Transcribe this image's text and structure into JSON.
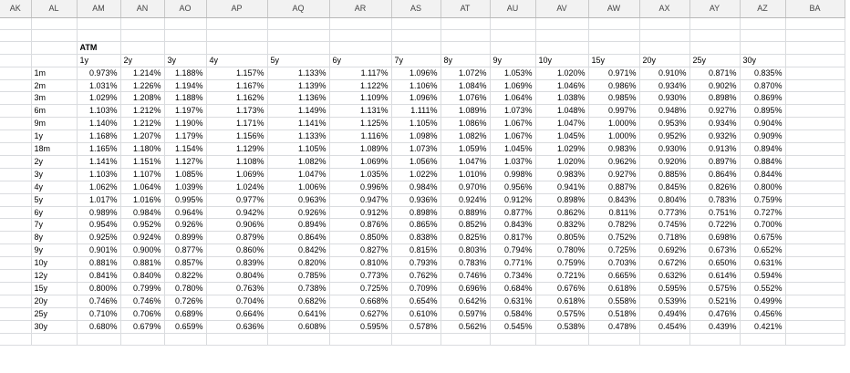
{
  "columns": [
    "AK",
    "AL",
    "AM",
    "AN",
    "AO",
    "AP",
    "AQ",
    "AR",
    "AS",
    "AT",
    "AU",
    "AV",
    "AW",
    "AX",
    "AY",
    "AZ",
    "BA"
  ],
  "table_title": "ATM",
  "maturity_headers": [
    "1y",
    "2y",
    "3y",
    "4y",
    "5y",
    "6y",
    "7y",
    "8y",
    "9y",
    "10y",
    "15y",
    "20y",
    "25y",
    "30y"
  ],
  "rows": [
    {
      "tenor": "1m",
      "values": [
        "0.973%",
        "1.214%",
        "1.188%",
        "1.157%",
        "1.133%",
        "1.117%",
        "1.096%",
        "1.072%",
        "1.053%",
        "1.020%",
        "0.971%",
        "0.910%",
        "0.871%",
        "0.835%"
      ]
    },
    {
      "tenor": "2m",
      "values": [
        "1.031%",
        "1.226%",
        "1.194%",
        "1.167%",
        "1.139%",
        "1.122%",
        "1.106%",
        "1.084%",
        "1.069%",
        "1.046%",
        "0.986%",
        "0.934%",
        "0.902%",
        "0.870%"
      ]
    },
    {
      "tenor": "3m",
      "values": [
        "1.029%",
        "1.208%",
        "1.188%",
        "1.162%",
        "1.136%",
        "1.109%",
        "1.096%",
        "1.076%",
        "1.064%",
        "1.038%",
        "0.985%",
        "0.930%",
        "0.898%",
        "0.869%"
      ]
    },
    {
      "tenor": "6m",
      "values": [
        "1.103%",
        "1.212%",
        "1.197%",
        "1.173%",
        "1.149%",
        "1.131%",
        "1.111%",
        "1.089%",
        "1.073%",
        "1.048%",
        "0.997%",
        "0.948%",
        "0.927%",
        "0.895%"
      ]
    },
    {
      "tenor": "9m",
      "values": [
        "1.140%",
        "1.212%",
        "1.190%",
        "1.171%",
        "1.141%",
        "1.125%",
        "1.105%",
        "1.086%",
        "1.067%",
        "1.047%",
        "1.000%",
        "0.953%",
        "0.934%",
        "0.904%"
      ]
    },
    {
      "tenor": "1y",
      "values": [
        "1.168%",
        "1.207%",
        "1.179%",
        "1.156%",
        "1.133%",
        "1.116%",
        "1.098%",
        "1.082%",
        "1.067%",
        "1.045%",
        "1.000%",
        "0.952%",
        "0.932%",
        "0.909%"
      ]
    },
    {
      "tenor": "18m",
      "values": [
        "1.165%",
        "1.180%",
        "1.154%",
        "1.129%",
        "1.105%",
        "1.089%",
        "1.073%",
        "1.059%",
        "1.045%",
        "1.029%",
        "0.983%",
        "0.930%",
        "0.913%",
        "0.894%"
      ]
    },
    {
      "tenor": "2y",
      "values": [
        "1.141%",
        "1.151%",
        "1.127%",
        "1.108%",
        "1.082%",
        "1.069%",
        "1.056%",
        "1.047%",
        "1.037%",
        "1.020%",
        "0.962%",
        "0.920%",
        "0.897%",
        "0.884%"
      ]
    },
    {
      "tenor": "3y",
      "values": [
        "1.103%",
        "1.107%",
        "1.085%",
        "1.069%",
        "1.047%",
        "1.035%",
        "1.022%",
        "1.010%",
        "0.998%",
        "0.983%",
        "0.927%",
        "0.885%",
        "0.864%",
        "0.844%"
      ]
    },
    {
      "tenor": "4y",
      "values": [
        "1.062%",
        "1.064%",
        "1.039%",
        "1.024%",
        "1.006%",
        "0.996%",
        "0.984%",
        "0.970%",
        "0.956%",
        "0.941%",
        "0.887%",
        "0.845%",
        "0.826%",
        "0.800%"
      ]
    },
    {
      "tenor": "5y",
      "values": [
        "1.017%",
        "1.016%",
        "0.995%",
        "0.977%",
        "0.963%",
        "0.947%",
        "0.936%",
        "0.924%",
        "0.912%",
        "0.898%",
        "0.843%",
        "0.804%",
        "0.783%",
        "0.759%"
      ]
    },
    {
      "tenor": "6y",
      "values": [
        "0.989%",
        "0.984%",
        "0.964%",
        "0.942%",
        "0.926%",
        "0.912%",
        "0.898%",
        "0.889%",
        "0.877%",
        "0.862%",
        "0.811%",
        "0.773%",
        "0.751%",
        "0.727%"
      ]
    },
    {
      "tenor": "7y",
      "values": [
        "0.954%",
        "0.952%",
        "0.926%",
        "0.906%",
        "0.894%",
        "0.876%",
        "0.865%",
        "0.852%",
        "0.843%",
        "0.832%",
        "0.782%",
        "0.745%",
        "0.722%",
        "0.700%"
      ]
    },
    {
      "tenor": "8y",
      "values": [
        "0.925%",
        "0.924%",
        "0.899%",
        "0.879%",
        "0.864%",
        "0.850%",
        "0.838%",
        "0.825%",
        "0.817%",
        "0.805%",
        "0.752%",
        "0.718%",
        "0.698%",
        "0.675%"
      ]
    },
    {
      "tenor": "9y",
      "values": [
        "0.901%",
        "0.900%",
        "0.877%",
        "0.860%",
        "0.842%",
        "0.827%",
        "0.815%",
        "0.803%",
        "0.794%",
        "0.780%",
        "0.725%",
        "0.692%",
        "0.673%",
        "0.652%"
      ]
    },
    {
      "tenor": "10y",
      "values": [
        "0.881%",
        "0.881%",
        "0.857%",
        "0.839%",
        "0.820%",
        "0.810%",
        "0.793%",
        "0.783%",
        "0.771%",
        "0.759%",
        "0.703%",
        "0.672%",
        "0.650%",
        "0.631%"
      ]
    },
    {
      "tenor": "12y",
      "values": [
        "0.841%",
        "0.840%",
        "0.822%",
        "0.804%",
        "0.785%",
        "0.773%",
        "0.762%",
        "0.746%",
        "0.734%",
        "0.721%",
        "0.665%",
        "0.632%",
        "0.614%",
        "0.594%"
      ]
    },
    {
      "tenor": "15y",
      "values": [
        "0.800%",
        "0.799%",
        "0.780%",
        "0.763%",
        "0.738%",
        "0.725%",
        "0.709%",
        "0.696%",
        "0.684%",
        "0.676%",
        "0.618%",
        "0.595%",
        "0.575%",
        "0.552%"
      ]
    },
    {
      "tenor": "20y",
      "values": [
        "0.746%",
        "0.746%",
        "0.726%",
        "0.704%",
        "0.682%",
        "0.668%",
        "0.654%",
        "0.642%",
        "0.631%",
        "0.618%",
        "0.558%",
        "0.539%",
        "0.521%",
        "0.499%"
      ]
    },
    {
      "tenor": "25y",
      "values": [
        "0.710%",
        "0.706%",
        "0.689%",
        "0.664%",
        "0.641%",
        "0.627%",
        "0.610%",
        "0.597%",
        "0.584%",
        "0.575%",
        "0.518%",
        "0.494%",
        "0.476%",
        "0.456%"
      ]
    },
    {
      "tenor": "30y",
      "values": [
        "0.680%",
        "0.679%",
        "0.659%",
        "0.636%",
        "0.608%",
        "0.595%",
        "0.578%",
        "0.562%",
        "0.545%",
        "0.538%",
        "0.478%",
        "0.454%",
        "0.439%",
        "0.421%"
      ]
    }
  ]
}
